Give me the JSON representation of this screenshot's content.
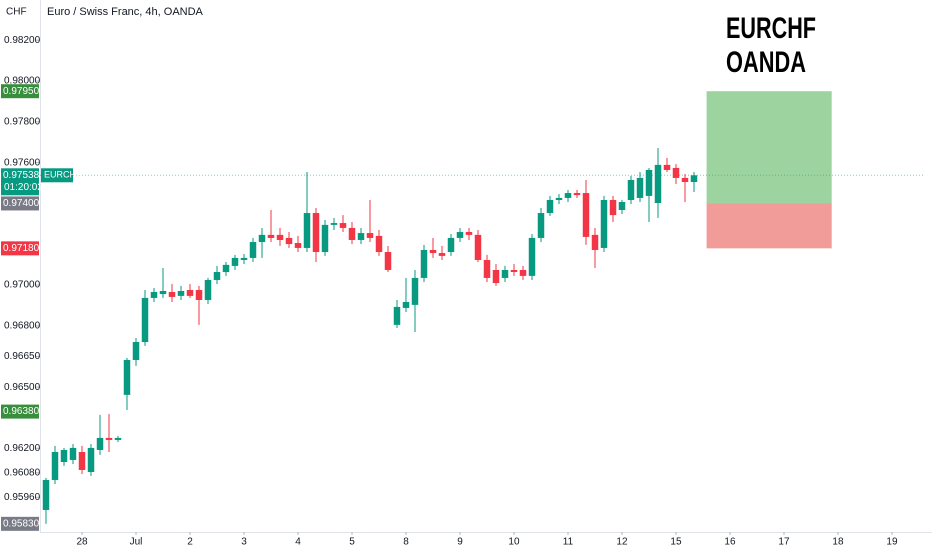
{
  "chart_data": {
    "type": "candlestick",
    "title": "EURCHF",
    "subtitle": "OANDA",
    "legend": "Euro / Swiss Franc, 4h, OANDA",
    "y_unit": "CHF",
    "symbol": "EURCHF",
    "countdown": "01:20:02",
    "up_color": "#089981",
    "down_color": "#f23645",
    "candles": {
      "open": [
        0.95898,
        0.96045,
        0.96133,
        0.96143,
        0.96182,
        0.96084,
        0.96192,
        0.96251,
        0.96241,
        0.96462,
        0.96633,
        0.96721,
        0.96937,
        0.96956,
        0.96966,
        0.96947,
        0.96976,
        0.96976,
        0.96927,
        0.97025,
        0.97064,
        0.97094,
        0.97123,
        0.97133,
        0.97211,
        0.97246,
        0.97246,
        0.97231,
        0.97206,
        0.97182,
        0.97353,
        0.97162,
        0.97295,
        0.97304,
        0.9728,
        0.97221,
        0.97255,
        0.97241,
        0.97162,
        0.96805,
        0.96888,
        0.96903,
        0.97035,
        0.97172,
        0.97157,
        0.97162,
        0.97231,
        0.9726,
        0.97246,
        0.97123,
        0.97074,
        0.97035,
        0.97074,
        0.97074,
        0.97045,
        0.97231,
        0.97353,
        0.97417,
        0.97427,
        0.97451,
        0.97451,
        0.97246,
        0.97182,
        0.97417,
        0.97368,
        0.97417,
        0.97427,
        0.97437,
        0.97402,
        0.97589,
        0.97574,
        0.97525,
        0.97505
      ],
      "high": [
        0.96055,
        0.96212,
        0.96202,
        0.96221,
        0.96212,
        0.96221,
        0.96364,
        0.96368,
        0.96261,
        0.96643,
        0.96741,
        0.96976,
        0.96986,
        0.97084,
        0.97005,
        0.96996,
        0.97005,
        0.96996,
        0.97035,
        0.97094,
        0.97113,
        0.97148,
        0.97152,
        0.97231,
        0.9728,
        0.97368,
        0.9728,
        0.9726,
        0.97241,
        0.97554,
        0.97378,
        0.97319,
        0.97329,
        0.97343,
        0.97309,
        0.9728,
        0.97417,
        0.9727,
        0.97192,
        0.96927,
        0.97035,
        0.97074,
        0.97197,
        0.97231,
        0.97192,
        0.9725,
        0.9728,
        0.9728,
        0.9727,
        0.97148,
        0.97103,
        0.97094,
        0.97103,
        0.97094,
        0.9725,
        0.97378,
        0.97437,
        0.97446,
        0.97466,
        0.97466,
        0.97515,
        0.9728,
        0.97437,
        0.97437,
        0.97417,
        0.97535,
        0.97554,
        0.97574,
        0.97672,
        0.97623,
        0.97593,
        0.97544,
        0.97554
      ],
      "low": [
        0.9583,
        0.96025,
        0.96114,
        0.96123,
        0.96074,
        0.96065,
        0.96168,
        0.96182,
        0.96231,
        0.96388,
        0.96604,
        0.96702,
        0.96917,
        0.96937,
        0.96917,
        0.96927,
        0.96937,
        0.96805,
        0.96907,
        0.97005,
        0.97045,
        0.97074,
        0.97103,
        0.97113,
        0.97133,
        0.97211,
        0.97192,
        0.97182,
        0.97162,
        0.97162,
        0.97113,
        0.97143,
        0.9727,
        0.9726,
        0.97201,
        0.97201,
        0.97211,
        0.97143,
        0.97064,
        0.9679,
        0.96868,
        0.9677,
        0.97015,
        0.97133,
        0.97123,
        0.97143,
        0.97211,
        0.97221,
        0.97113,
        0.97015,
        0.96996,
        0.97015,
        0.97045,
        0.97025,
        0.97025,
        0.97211,
        0.97339,
        0.97397,
        0.97407,
        0.97427,
        0.97197,
        0.97084,
        0.97162,
        0.97309,
        0.97348,
        0.97397,
        0.97407,
        0.97309,
        0.97329,
        0.97554,
        0.97495,
        0.97407,
        0.97456
      ],
      "close": [
        0.96045,
        0.96182,
        0.96192,
        0.96202,
        0.96094,
        0.96202,
        0.96251,
        0.96241,
        0.96251,
        0.96633,
        0.96721,
        0.96937,
        0.96966,
        0.96971,
        0.96942,
        0.96971,
        0.96947,
        0.96927,
        0.97025,
        0.97064,
        0.97099,
        0.97133,
        0.97133,
        0.97211,
        0.97246,
        0.97231,
        0.97221,
        0.97201,
        0.97182,
        0.97353,
        0.97162,
        0.97295,
        0.97304,
        0.9728,
        0.97221,
        0.97255,
        0.97231,
        0.97162,
        0.97074,
        0.96893,
        0.96917,
        0.97035,
        0.97172,
        0.97157,
        0.97143,
        0.97231,
        0.9726,
        0.97246,
        0.97123,
        0.97035,
        0.9701,
        0.97074,
        0.97064,
        0.97045,
        0.97231,
        0.97353,
        0.97417,
        0.97427,
        0.97451,
        0.97441,
        0.97236,
        0.97172,
        0.97417,
        0.97343,
        0.97407,
        0.97515,
        0.97525,
        0.97564,
        0.97589,
        0.97564,
        0.97525,
        0.97505,
        0.97538
      ]
    },
    "last_price": {
      "value": 0.97538,
      "label": "0.97538",
      "color": "#089981"
    },
    "position": {
      "target": {
        "value": 0.9795,
        "label": "0.97950",
        "color": "#388e3c"
      },
      "entry": {
        "value": 0.974,
        "label": "0.97400",
        "color": "#787b86"
      },
      "stop": {
        "value": 0.9718,
        "label": "0.97180",
        "color": "#f23645"
      },
      "profit_color": "#4caf50",
      "loss_color": "#e53935"
    },
    "price_labels": [
      {
        "value": 0.9638,
        "label": "0.96380",
        "color": "#388e3c"
      },
      {
        "value": 0.9583,
        "label": "0.95830",
        "color": "#787b86"
      }
    ],
    "ylim": [
      0.9579,
      0.98397
    ],
    "yticks": [
      {
        "value": 0.982,
        "label": "0.98200"
      },
      {
        "value": 0.98,
        "label": "0.98000"
      },
      {
        "value": 0.978,
        "label": "0.97800"
      },
      {
        "value": 0.976,
        "label": "0.97600"
      },
      {
        "value": 0.97,
        "label": "0.97000"
      },
      {
        "value": 0.968,
        "label": "0.96800"
      },
      {
        "value": 0.9665,
        "label": "0.96650"
      },
      {
        "value": 0.965,
        "label": "0.96500"
      },
      {
        "value": 0.962,
        "label": "0.96200"
      },
      {
        "value": 0.9608,
        "label": "0.96080"
      },
      {
        "value": 0.9596,
        "label": "0.95960"
      }
    ],
    "xlim": [
      -0.667,
      97.667
    ],
    "xticks": [
      {
        "value": 4,
        "label": "28"
      },
      {
        "value": 10,
        "label": "Jul"
      },
      {
        "value": 16,
        "label": "2"
      },
      {
        "value": 22,
        "label": "3"
      },
      {
        "value": 28,
        "label": "4"
      },
      {
        "value": 34,
        "label": "5"
      },
      {
        "value": 40,
        "label": "8"
      },
      {
        "value": 46,
        "label": "9"
      },
      {
        "value": 52,
        "label": "10"
      },
      {
        "value": 58,
        "label": "11"
      },
      {
        "value": 64,
        "label": "12"
      },
      {
        "value": 70,
        "label": "15"
      },
      {
        "value": 76,
        "label": "16"
      },
      {
        "value": 82,
        "label": "17"
      },
      {
        "value": 88,
        "label": "18"
      },
      {
        "value": 94,
        "label": "19"
      }
    ]
  }
}
